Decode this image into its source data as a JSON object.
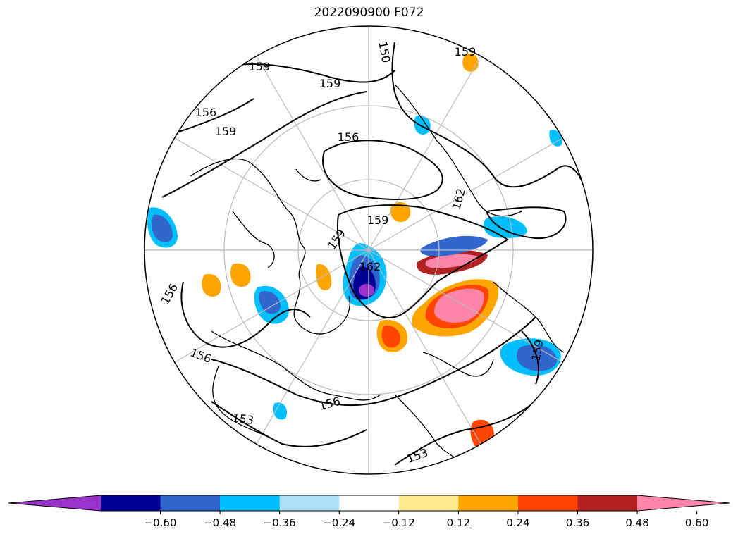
{
  "title": "2022090900 F072",
  "map": {
    "projection": "north-polar-stereographic",
    "contour_labels": [
      {
        "id": "c150",
        "text": "150"
      },
      {
        "id": "c159a",
        "text": "159"
      },
      {
        "id": "c159b",
        "text": "159"
      },
      {
        "id": "c159c",
        "text": "159"
      },
      {
        "id": "c156a",
        "text": "156"
      },
      {
        "id": "c159d",
        "text": "159"
      },
      {
        "id": "c156b",
        "text": "156"
      },
      {
        "id": "c162a",
        "text": "162"
      },
      {
        "id": "c159e",
        "text": "159"
      },
      {
        "id": "c159f",
        "text": "159"
      },
      {
        "id": "c162b",
        "text": "162"
      },
      {
        "id": "c156c",
        "text": "156"
      },
      {
        "id": "c156d",
        "text": "156"
      },
      {
        "id": "c153a",
        "text": "153"
      },
      {
        "id": "c159g",
        "text": "159"
      },
      {
        "id": "c153b",
        "text": "153"
      },
      {
        "id": "c156e",
        "text": "156"
      }
    ]
  },
  "colorbar": {
    "extend": "both",
    "bins": [
      {
        "color": "#9933cc"
      },
      {
        "color": "#000099"
      },
      {
        "color": "#3366cc"
      },
      {
        "color": "#00bfff"
      },
      {
        "color": "#aee2fa"
      },
      {
        "color": "#ffffff"
      },
      {
        "color": "#ffe98f"
      },
      {
        "color": "#ffa500"
      },
      {
        "color": "#ff4500"
      },
      {
        "color": "#b22222"
      },
      {
        "color": "#ff85a9"
      }
    ],
    "ticks": [
      "−0.60",
      "−0.48",
      "−0.36",
      "−0.24",
      "−0.12",
      "0.12",
      "0.24",
      "0.36",
      "0.48",
      "0.60"
    ]
  }
}
